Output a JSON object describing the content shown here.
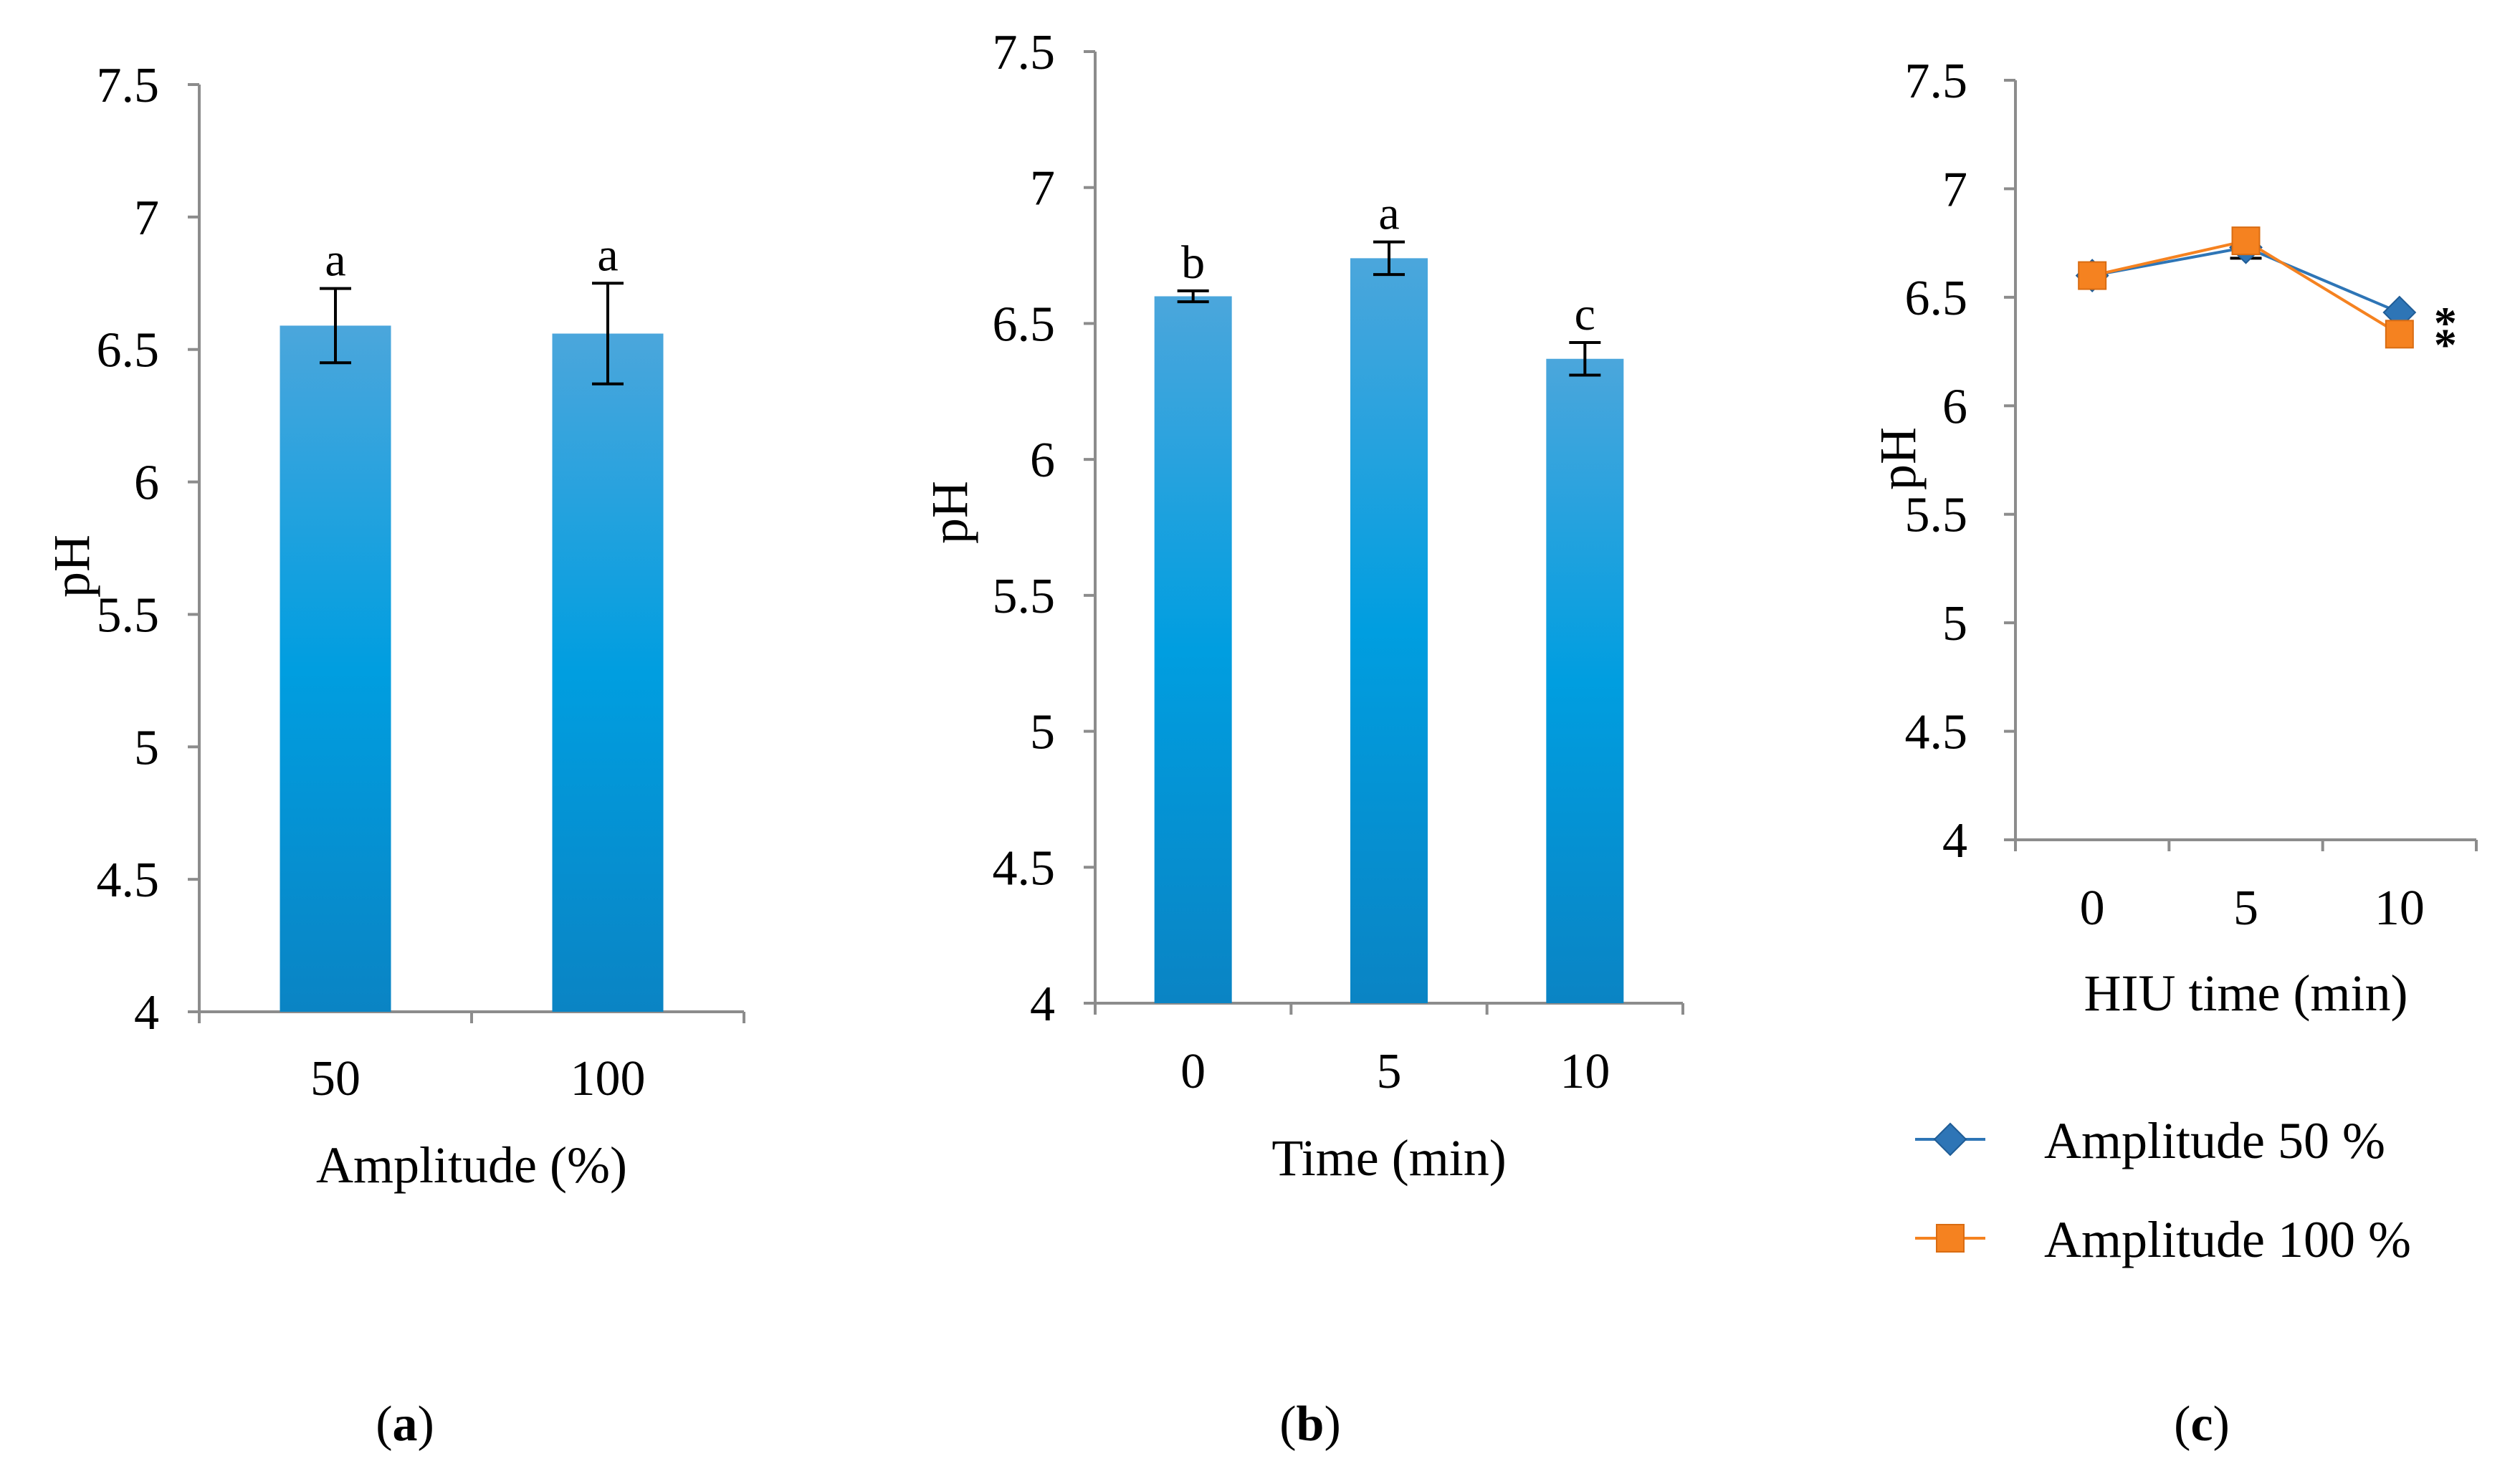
{
  "chart_data": [
    {
      "id": "a",
      "type": "bar",
      "categories": [
        "50",
        "100"
      ],
      "values": [
        6.59,
        6.56
      ],
      "errors": [
        0.14,
        0.19
      ],
      "sig_labels": [
        "a",
        "a"
      ],
      "xlabel": "Amplitude (%)",
      "ylabel": "pH",
      "ylim": [
        4,
        7.5
      ],
      "yticks": [
        "4",
        "4.5",
        "5",
        "5.5",
        "6",
        "6.5",
        "7",
        "7.5"
      ],
      "panel_label": {
        "open": "(",
        "letter": "a",
        "close": ")"
      }
    },
    {
      "id": "b",
      "type": "bar",
      "categories": [
        "0",
        "5",
        "10"
      ],
      "values": [
        6.6,
        6.74,
        6.37
      ],
      "errors": [
        0.02,
        0.06,
        0.06
      ],
      "sig_labels": [
        "b",
        "a",
        "c"
      ],
      "xlabel": "Time (min)",
      "ylabel": "pH",
      "ylim": [
        4,
        7.5
      ],
      "yticks": [
        "4",
        "4.5",
        "5",
        "5.5",
        "6",
        "6.5",
        "7",
        "7.5"
      ],
      "panel_label": {
        "open": "(",
        "letter": "b",
        "close": ")"
      }
    },
    {
      "id": "c",
      "type": "line",
      "categories": [
        "0",
        "5",
        "10"
      ],
      "series": [
        {
          "name": "Amplitude 50 %",
          "values": [
            6.6,
            6.73,
            6.43
          ],
          "errors": [
            0,
            0.05,
            0
          ],
          "color": "#2E75B6",
          "marker": "diamond"
        },
        {
          "name": "Amplitude 100 %",
          "values": [
            6.6,
            6.76,
            6.33
          ],
          "errors": [
            0,
            0,
            0
          ],
          "color": "#F58220",
          "marker": "square"
        }
      ],
      "annotations": [
        "*",
        "*"
      ],
      "xlabel": "HIU time (min)",
      "ylabel": "pH",
      "ylim": [
        4,
        7.5
      ],
      "yticks": [
        "4",
        "4.5",
        "5",
        "5.5",
        "6",
        "6.5",
        "7",
        "7.5"
      ],
      "panel_label": {
        "open": "(",
        "letter": "c",
        "close": ")"
      }
    }
  ],
  "colors": {
    "bar_top": "#4BA6DC",
    "bar_mid": "#009EE0",
    "bar_bottom": "#0A84C4",
    "axis": "#8C8C8C"
  }
}
